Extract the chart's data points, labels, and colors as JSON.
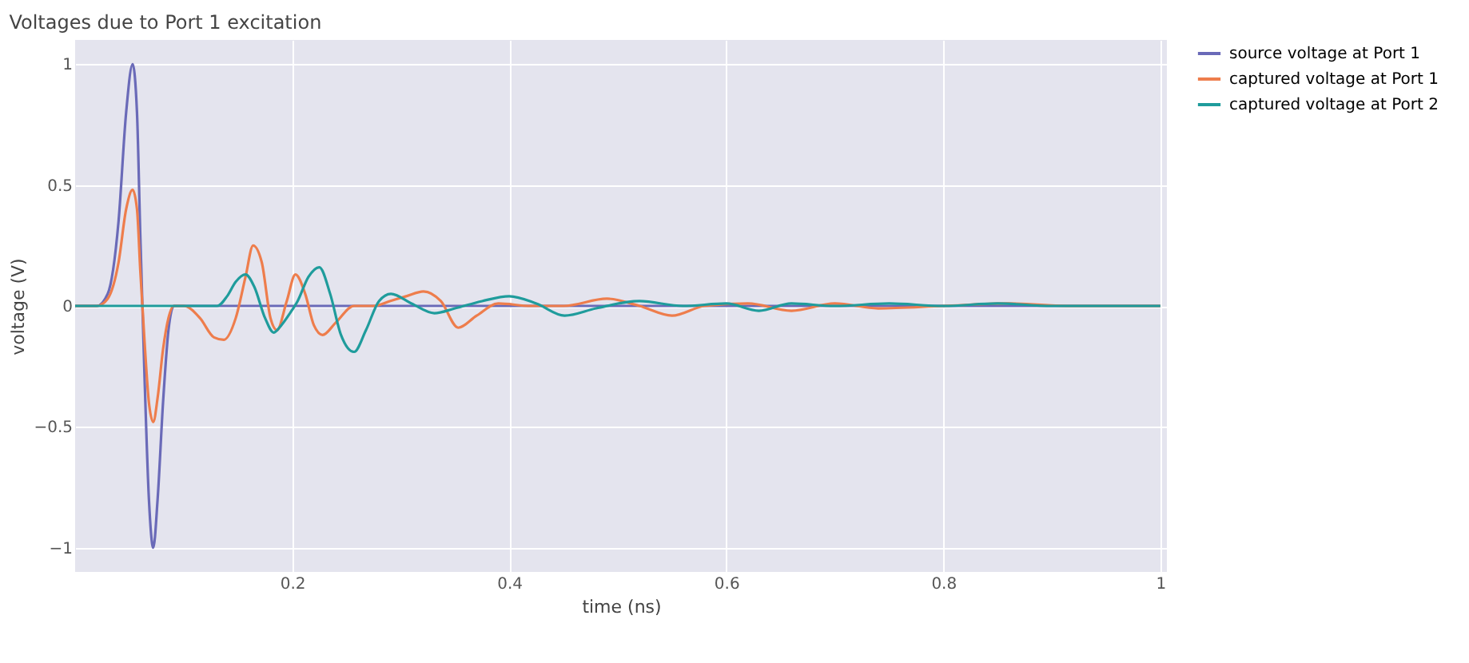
{
  "chart_data": {
    "type": "line",
    "title": "Voltages due to Port 1 excitation",
    "xlabel": "time (ns)",
    "ylabel": "voltage (V)",
    "xlim": [
      0,
      1.006
    ],
    "ylim": [
      -1.1,
      1.1
    ],
    "xticks": [
      0.2,
      0.4,
      0.6,
      0.8,
      1
    ],
    "yticks": [
      -1,
      -0.5,
      0,
      0.5,
      1
    ],
    "grid": true,
    "legend": "top right",
    "series": [
      {
        "name": "source voltage at Port 1",
        "color": "#6a6ab8",
        "x": [
          0,
          0.02,
          0.03,
          0.04,
          0.047,
          0.053,
          0.057,
          0.06,
          0.064,
          0.068,
          0.072,
          0.076,
          0.081,
          0.086,
          0.091,
          0.1,
          1.0
        ],
        "values": [
          0,
          0,
          0.05,
          0.35,
          0.8,
          1,
          0.8,
          0.3,
          -0.3,
          -0.8,
          -1,
          -0.8,
          -0.4,
          -0.1,
          0,
          0,
          0
        ]
      },
      {
        "name": "captured voltage at Port 1",
        "color": "#ee7d4c",
        "x": [
          0,
          0.02,
          0.03,
          0.04,
          0.047,
          0.053,
          0.057,
          0.06,
          0.064,
          0.068,
          0.072,
          0.076,
          0.081,
          0.086,
          0.091,
          0.1,
          0.115,
          0.128,
          0.137,
          0.148,
          0.157,
          0.164,
          0.172,
          0.18,
          0.186,
          0.195,
          0.203,
          0.212,
          0.22,
          0.228,
          0.24,
          0.257,
          0.275,
          0.29,
          0.305,
          0.321,
          0.337,
          0.353,
          0.37,
          0.39,
          0.42,
          0.45,
          0.49,
          0.52,
          0.55,
          0.58,
          0.62,
          0.66,
          0.7,
          0.74,
          0.8,
          0.86,
          0.92,
          1.0
        ],
        "values": [
          0,
          0,
          0.03,
          0.18,
          0.4,
          0.48,
          0.4,
          0.15,
          -0.15,
          -0.4,
          -0.48,
          -0.38,
          -0.18,
          -0.05,
          0,
          0,
          -0.05,
          -0.13,
          -0.14,
          -0.05,
          0.12,
          0.25,
          0.18,
          -0.05,
          -0.1,
          0.02,
          0.13,
          0.05,
          -0.08,
          -0.12,
          -0.07,
          0,
          0,
          0.02,
          0.04,
          0.06,
          0.02,
          -0.09,
          -0.04,
          0.01,
          0,
          0,
          0.03,
          0,
          -0.04,
          0,
          0.01,
          -0.02,
          0.01,
          -0.01,
          0,
          0.01,
          0,
          0
        ]
      },
      {
        "name": "captured voltage at Port 2",
        "color": "#1f9c9c",
        "x": [
          0,
          0.131,
          0.14,
          0.148,
          0.157,
          0.165,
          0.175,
          0.183,
          0.19,
          0.198,
          0.205,
          0.215,
          0.225,
          0.235,
          0.245,
          0.257,
          0.268,
          0.28,
          0.291,
          0.31,
          0.331,
          0.35,
          0.375,
          0.4,
          0.425,
          0.451,
          0.48,
          0.52,
          0.56,
          0.6,
          0.63,
          0.66,
          0.7,
          0.75,
          0.8,
          0.85,
          0.9,
          1.0
        ],
        "values": [
          0,
          0,
          0.04,
          0.1,
          0.13,
          0.08,
          -0.05,
          -0.11,
          -0.08,
          -0.03,
          0.02,
          0.12,
          0.16,
          0.05,
          -0.12,
          -0.19,
          -0.1,
          0.02,
          0.05,
          0.01,
          -0.03,
          -0.01,
          0.02,
          0.04,
          0.01,
          -0.04,
          -0.01,
          0.02,
          0,
          0.01,
          -0.02,
          0.01,
          0,
          0.01,
          0,
          0.01,
          0,
          0
        ]
      }
    ]
  }
}
